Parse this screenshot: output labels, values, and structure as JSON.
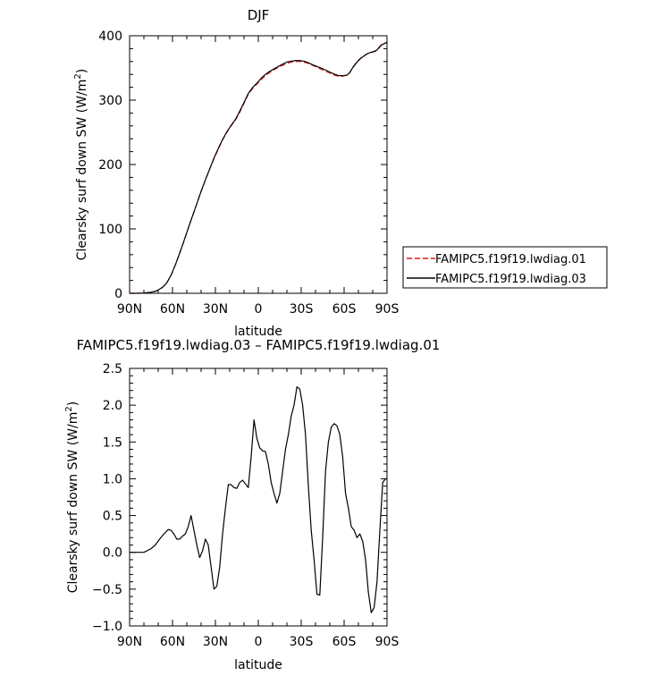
{
  "chart_data": [
    {
      "type": "line",
      "title": "DJF",
      "xlabel": "latitude",
      "ylabel_main": "Clearsky surf down SW (W/m",
      "ylabel_sup": "2",
      "ylabel_close": ")",
      "xlim": [
        90,
        -90
      ],
      "ylim": [
        0,
        400
      ],
      "x_tick_values": [
        90,
        60,
        30,
        0,
        -30,
        -60,
        -90
      ],
      "x_tick_labels": [
        "90N",
        "60N",
        "30N",
        "0",
        "30S",
        "60S",
        "90S"
      ],
      "y_tick_values": [
        0,
        100,
        200,
        300,
        400
      ],
      "y_tick_labels": [
        "0",
        "100",
        "200",
        "300",
        "400"
      ],
      "legend_position": "right",
      "series": [
        {
          "name": "FAMIPC5.f19f19.lwdiag.01",
          "color": "#e41a1c",
          "dash": "dashed",
          "x": [
            90,
            85,
            80,
            75,
            72,
            70,
            67,
            64,
            61,
            58,
            55,
            52,
            49,
            46,
            43,
            40,
            37,
            34,
            31,
            28,
            25,
            22,
            19,
            16,
            13,
            10,
            7,
            4,
            1,
            -2,
            -5,
            -8,
            -11,
            -14,
            -17,
            -20,
            -23,
            -26,
            -29,
            -32,
            -35,
            -38,
            -41,
            -44,
            -47,
            -50,
            -53,
            -56,
            -59,
            -62,
            -64,
            -66,
            -68,
            -70,
            -72,
            -74,
            -76,
            -78,
            -80,
            -82,
            -84,
            -86,
            -88,
            -90
          ],
          "values": [
            0,
            0,
            0.3,
            1.5,
            3,
            5,
            9,
            16,
            28,
            44,
            62,
            81,
            101,
            120,
            139,
            158,
            176,
            193,
            209,
            224,
            238,
            250,
            260,
            269,
            281,
            295,
            309,
            318,
            325,
            332,
            338,
            343,
            347,
            351,
            354,
            357,
            359,
            360,
            360,
            359,
            357,
            354,
            351,
            348,
            345,
            342,
            339,
            337,
            337,
            339,
            343,
            351,
            357,
            362,
            366,
            369,
            372,
            374,
            375,
            377,
            381,
            386,
            388,
            389
          ]
        },
        {
          "name": "FAMIPC5.f19f19.lwdiag.03",
          "color": "#000000",
          "dash": "solid",
          "x": [
            90,
            85,
            80,
            75,
            72,
            70,
            67,
            64,
            61,
            58,
            55,
            52,
            49,
            46,
            43,
            40,
            37,
            34,
            31,
            28,
            25,
            22,
            19,
            16,
            13,
            10,
            7,
            4,
            1,
            -2,
            -5,
            -8,
            -11,
            -14,
            -17,
            -20,
            -23,
            -26,
            -29,
            -32,
            -35,
            -38,
            -41,
            -44,
            -47,
            -50,
            -53,
            -56,
            -59,
            -62,
            -64,
            -66,
            -68,
            -70,
            -72,
            -74,
            -76,
            -78,
            -80,
            -82,
            -84,
            -86,
            -88,
            -90
          ],
          "values": [
            0,
            0,
            0.3,
            1.6,
            3.1,
            5.2,
            9.3,
            16.2,
            28.2,
            44.2,
            62.3,
            81.4,
            101.1,
            120.2,
            139.1,
            158.5,
            176.1,
            193.1,
            210,
            224.9,
            238.9,
            250.9,
            261,
            270,
            282.8,
            296.4,
            310.4,
            319.5,
            326.4,
            333.9,
            340,
            344.8,
            348.5,
            352.3,
            355.8,
            359.2,
            360.5,
            361.5,
            361.5,
            360.5,
            358.1,
            354.9,
            352.4,
            349.8,
            346.7,
            343.6,
            340.6,
            338.3,
            337.9,
            338.8,
            342.9,
            350.4,
            356.3,
            361.3,
            365.6,
            368.7,
            371.7,
            373.8,
            374.8,
            376.2,
            380.2,
            385.5,
            387.8,
            390
          ]
        }
      ]
    },
    {
      "type": "line",
      "title": "FAMIPC5.f19f19.lwdiag.03 – FAMIPC5.f19f19.lwdiag.01",
      "xlabel": "latitude",
      "ylabel_main": "Clearsky surf down SW (W/m",
      "ylabel_sup": "2",
      "ylabel_close": ")",
      "xlim": [
        90,
        -90
      ],
      "ylim": [
        -1,
        2.5
      ],
      "x_tick_values": [
        90,
        60,
        30,
        0,
        -30,
        -60,
        -90
      ],
      "x_tick_labels": [
        "90N",
        "60N",
        "30N",
        "0",
        "30S",
        "60S",
        "90S"
      ],
      "y_tick_values": [
        -1,
        -0.5,
        0,
        0.5,
        1,
        1.5,
        2,
        2.5
      ],
      "y_tick_labels": [
        "−1.0",
        "−0.5",
        "0.0",
        "0.5",
        "1.0",
        "1.5",
        "2.0",
        "2.5"
      ],
      "series": [
        {
          "color": "#000000",
          "dash": "solid",
          "x": [
            90,
            80,
            75,
            72,
            69,
            66,
            63,
            61,
            59,
            57,
            55,
            53,
            51,
            49,
            47,
            45,
            43,
            41,
            39,
            37,
            35,
            33,
            31,
            29,
            27,
            25,
            23,
            21,
            19,
            17,
            15,
            13,
            11,
            9,
            7,
            5,
            3,
            1,
            -1,
            -3,
            -5,
            -7,
            -9,
            -11,
            -13,
            -15,
            -17,
            -19,
            -21,
            -23,
            -25,
            -27,
            -29,
            -31,
            -33,
            -35,
            -37,
            -39,
            -41,
            -43,
            -45,
            -47,
            -49,
            -51,
            -53,
            -55,
            -57,
            -59,
            -61,
            -63,
            -65,
            -67,
            -69,
            -71,
            -73,
            -75,
            -77,
            -79,
            -81,
            -83,
            -85,
            -87,
            -89,
            -90
          ],
          "values": [
            0,
            0,
            0.05,
            0.1,
            0.18,
            0.25,
            0.31,
            0.3,
            0.25,
            0.18,
            0.18,
            0.22,
            0.25,
            0.35,
            0.5,
            0.3,
            0.1,
            -0.07,
            0.02,
            0.18,
            0.1,
            -0.2,
            -0.5,
            -0.46,
            -0.2,
            0.25,
            0.6,
            0.92,
            0.92,
            0.88,
            0.87,
            0.95,
            0.98,
            0.93,
            0.88,
            1.3,
            1.8,
            1.55,
            1.42,
            1.38,
            1.37,
            1.2,
            0.95,
            0.8,
            0.67,
            0.8,
            1.1,
            1.4,
            1.6,
            1.85,
            2.0,
            2.25,
            2.22,
            2.0,
            1.6,
            0.9,
            0.3,
            -0.1,
            -0.57,
            -0.58,
            0.2,
            1.1,
            1.5,
            1.7,
            1.75,
            1.72,
            1.6,
            1.3,
            0.8,
            0.6,
            0.35,
            0.3,
            0.2,
            0.25,
            0.15,
            -0.1,
            -0.55,
            -0.82,
            -0.75,
            -0.4,
            0.3,
            0.95,
            1.0,
            1.0
          ]
        }
      ]
    }
  ]
}
